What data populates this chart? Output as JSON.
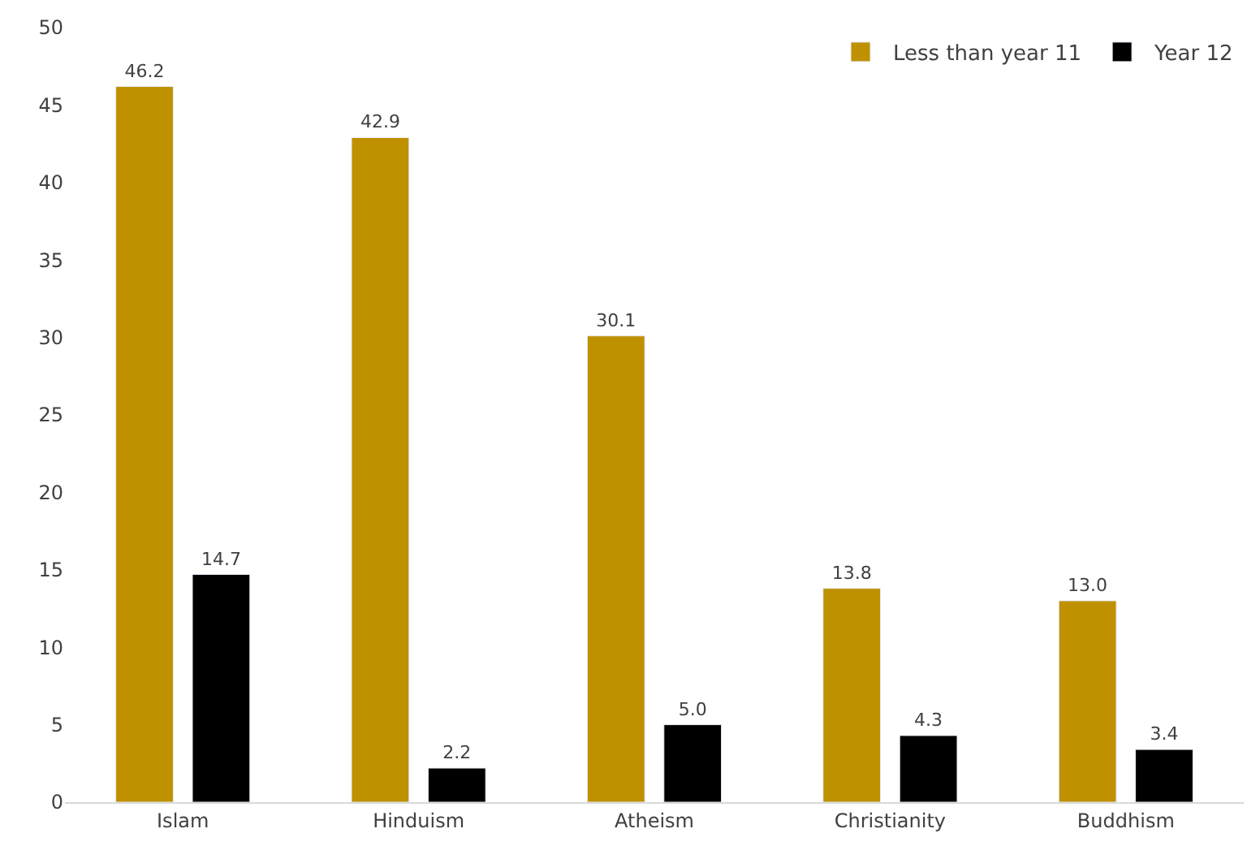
{
  "chart_data": {
    "type": "bar",
    "categories": [
      "Islam",
      "Hinduism",
      "Atheism",
      "Christianity",
      "Buddhism"
    ],
    "series": [
      {
        "name": "Less than year 11",
        "color": "#bf9000",
        "values": [
          46.2,
          42.9,
          30.1,
          13.8,
          13.0
        ],
        "value_labels": [
          "46.2",
          "42.9",
          "30.1",
          "13.8",
          "13.0"
        ]
      },
      {
        "name": "Year 12",
        "color": "#000000",
        "values": [
          14.7,
          2.2,
          5.0,
          4.3,
          3.4
        ],
        "value_labels": [
          "14.7",
          "2.2",
          "5.0",
          "4.3",
          "3.4"
        ]
      }
    ],
    "ylim": [
      0,
      50
    ],
    "yticks": [
      0,
      5,
      10,
      15,
      20,
      25,
      30,
      35,
      40,
      45,
      50
    ],
    "legend": "top right"
  }
}
